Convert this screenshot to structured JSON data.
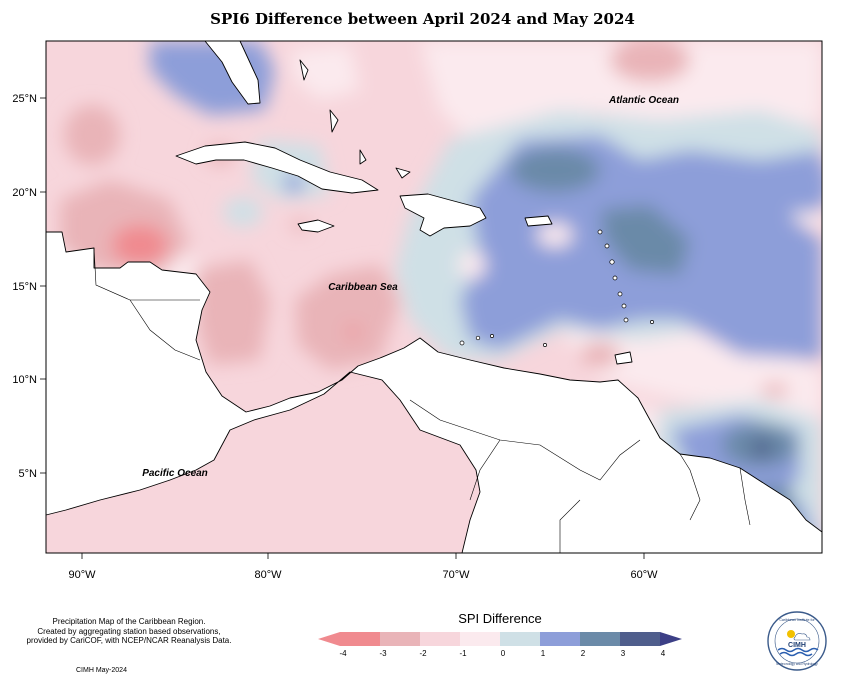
{
  "title": "SPI6 Difference between April 2024 and May 2024",
  "x_axis_ticks": [
    "90°W",
    "80°W",
    "70°W",
    "60°W"
  ],
  "y_axis_ticks": [
    "25°N",
    "20°N",
    "15°N",
    "10°N",
    "5°N"
  ],
  "labels": {
    "atlantic": "Atlantic Ocean",
    "caribbean": "Caribbean Sea",
    "pacific": "Pacific Ocean"
  },
  "footer": {
    "line1": "Precipitation Map of the Caribbean Region.",
    "line2": "Created by aggregating station based observations,",
    "line3": "provided by CariCOF, with NCEP/NCAR Reanalysis Data.",
    "credit": "CIMH May-2024"
  },
  "legend": {
    "title": "SPI Difference",
    "ticks": [
      "-4",
      "-3",
      "-2",
      "-1",
      "0",
      "1",
      "2",
      "3",
      "4"
    ],
    "colors": [
      "#f08a8f",
      "#e9b4b8",
      "#f7d6dc",
      "#fbeaee",
      "#cfe0e6",
      "#8d9ed9",
      "#6b8aa8",
      "#4f5e8c",
      "#3c3f86"
    ]
  },
  "logo": {
    "top_text": "Caribbean Institute for",
    "center_text": "CIMH",
    "bottom_text": "Meteorology and Hydrology"
  },
  "colors": {
    "strong_dry": "#f08a8f",
    "dry": "#e9b4b8",
    "light_dry": "#f7d6dc",
    "neutral": "#fbeaee",
    "light_wet": "#cfe0e6",
    "wet": "#8d9ed9",
    "very_wet": "#6b8aa8",
    "extreme_wet": "#4f5e8c"
  }
}
